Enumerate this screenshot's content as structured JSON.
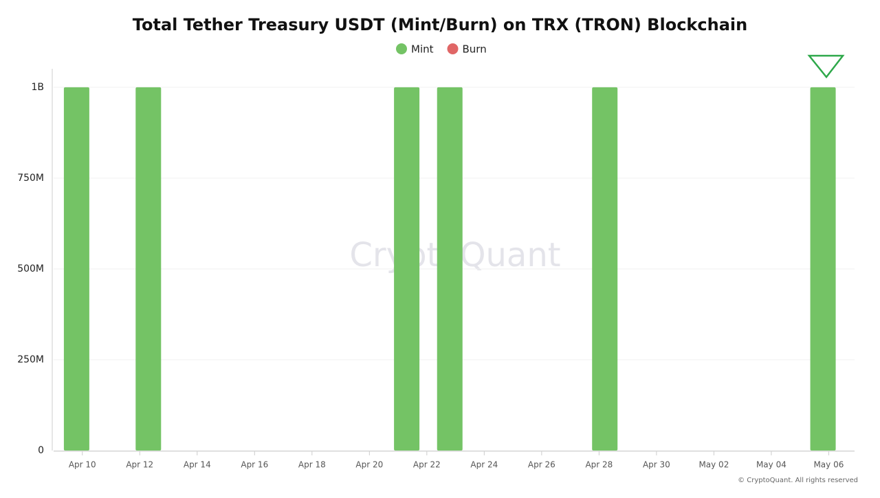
{
  "chart_data": {
    "type": "bar",
    "title": "Total Tether Treasury USDT (Mint/Burn) on TRX (TRON) Blockchain",
    "watermark": "CryptoQuant",
    "footer": "© CryptoQuant. All rights reserved",
    "x": [
      -0.2,
      2.3,
      11.3,
      12.8,
      18.2,
      25.8
    ],
    "series": [
      {
        "name": "Mint",
        "color": "#74c365",
        "values": [
          1000000000,
          1000000000,
          1000000000,
          1000000000,
          1000000000,
          1000000000
        ]
      },
      {
        "name": "Burn",
        "color": "#e06666",
        "values": [
          null,
          null,
          null,
          null,
          null,
          null
        ]
      }
    ],
    "xlim": [
      -1,
      26.9
    ],
    "xticks": [
      {
        "value": 0,
        "label": "Apr 10"
      },
      {
        "value": 2,
        "label": "Apr 12"
      },
      {
        "value": 4,
        "label": "Apr 14"
      },
      {
        "value": 6,
        "label": "Apr 16"
      },
      {
        "value": 8,
        "label": "Apr 18"
      },
      {
        "value": 10,
        "label": "Apr 20"
      },
      {
        "value": 12,
        "label": "Apr 22"
      },
      {
        "value": 14,
        "label": "Apr 24"
      },
      {
        "value": 16,
        "label": "Apr 26"
      },
      {
        "value": 18,
        "label": "Apr 28"
      },
      {
        "value": 20,
        "label": "Apr 30"
      },
      {
        "value": 22,
        "label": "May 02"
      },
      {
        "value": 24,
        "label": "May 04"
      },
      {
        "value": 26,
        "label": "May 06"
      }
    ],
    "ylim": [
      0,
      1051000000
    ],
    "yticks": [
      0,
      {
        "value": 250000000,
        "label": "250M"
      },
      {
        "value": 500000000,
        "label": "500M"
      },
      {
        "value": 750000000,
        "label": "750M"
      },
      {
        "value": 1000000000,
        "label": "1B"
      }
    ],
    "grid": true
  }
}
